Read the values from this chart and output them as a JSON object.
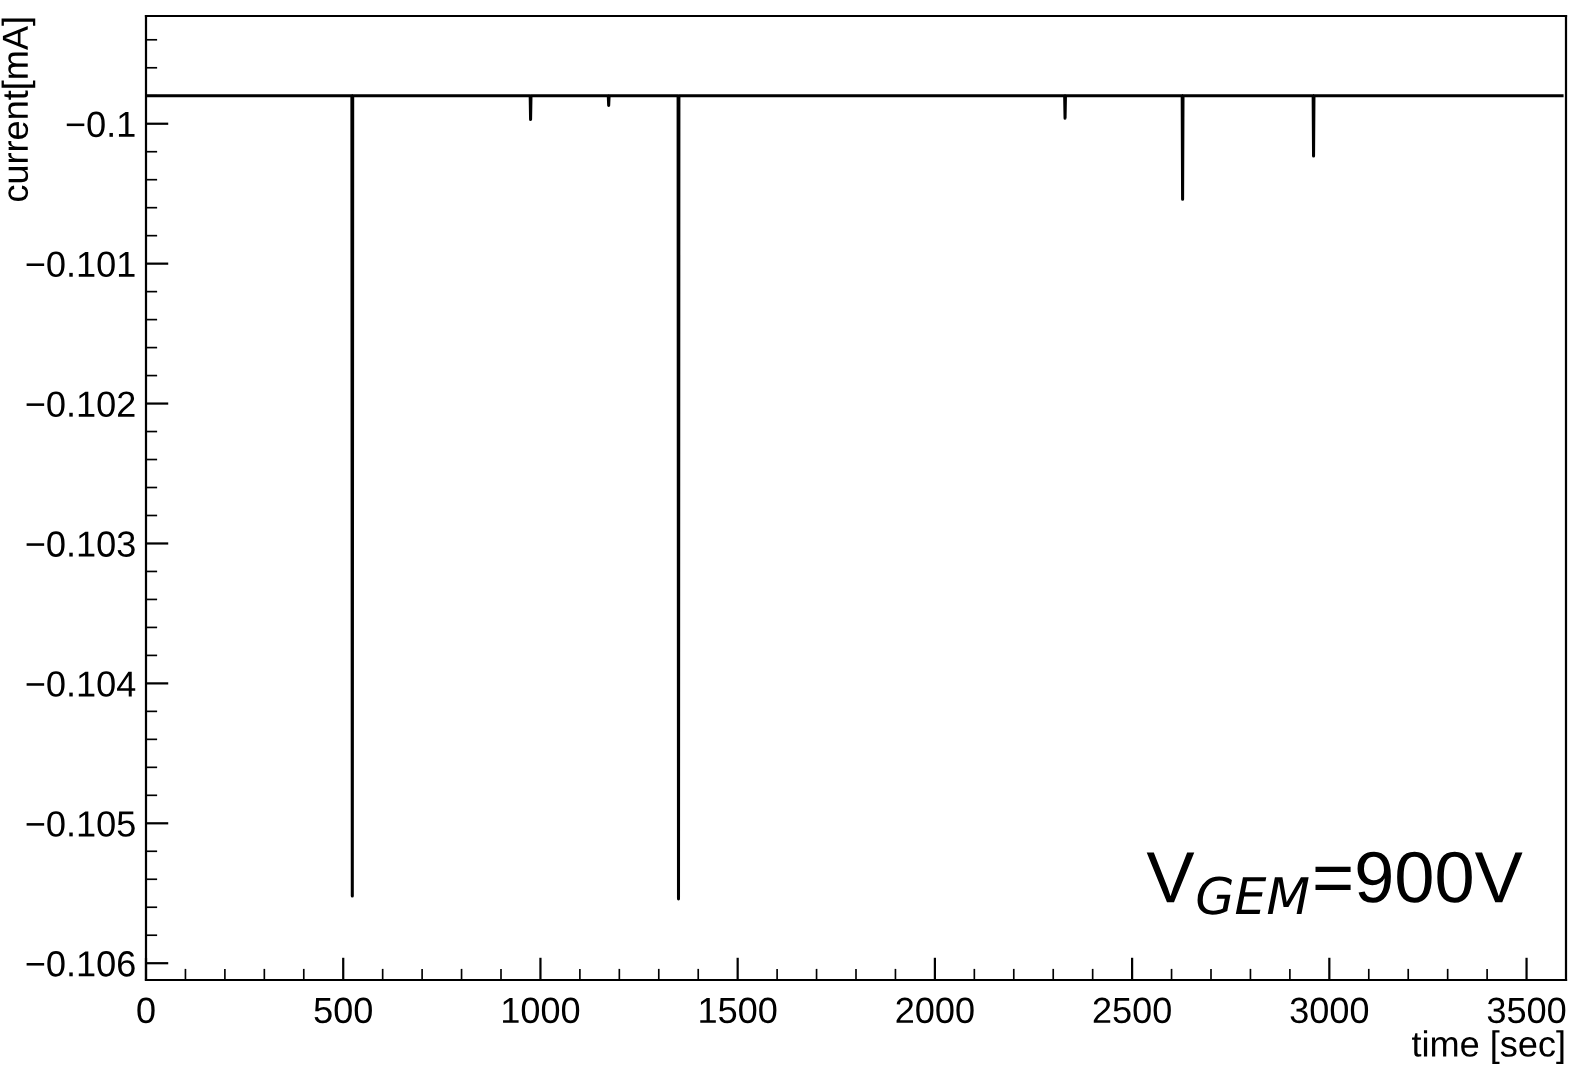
{
  "chart_data": {
    "type": "line",
    "xlabel": "time [sec]",
    "ylabel": "current[mA]",
    "annotations": [
      "V$_{GEM}$=900V"
    ],
    "series": [
      {
        "color": "#000000",
        "x": [
          0,
          522,
          523,
          524,
          974,
          975,
          976,
          1172,
          1173,
          1174,
          1349,
          1350,
          1351,
          2329,
          2330,
          2331,
          2627,
          2628,
          2629,
          2959,
          2960,
          2961,
          3590
        ],
        "values": [
          -0.0998,
          -0.0998,
          -0.10552,
          -0.0998,
          -0.0998,
          -0.09997,
          -0.0998,
          -0.0998,
          -0.09987,
          -0.0998,
          -0.0998,
          -0.10554,
          -0.0998,
          -0.0998,
          -0.09996,
          -0.0998,
          -0.0998,
          -0.10054,
          -0.0998,
          -0.0998,
          -0.10023,
          -0.0998,
          -0.0998
        ]
      }
    ],
    "xlim": [
      0,
      3600
    ],
    "ylim": [
      -0.10612,
      -0.09923
    ],
    "xticks": [
      0,
      500,
      1000,
      1500,
      2000,
      2500,
      3000,
      3500,
      {
        "value": 100,
        "label": null
      },
      {
        "value": 200,
        "label": null
      },
      {
        "value": 300,
        "label": null
      },
      {
        "value": 400,
        "label": null
      },
      {
        "value": 600,
        "label": null
      },
      {
        "value": 700,
        "label": null
      },
      {
        "value": 800,
        "label": null
      },
      {
        "value": 900,
        "label": null
      },
      {
        "value": 1100,
        "label": null
      },
      {
        "value": 1200,
        "label": null
      },
      {
        "value": 1300,
        "label": null
      },
      {
        "value": 1400,
        "label": null
      },
      {
        "value": 1600,
        "label": null
      },
      {
        "value": 1700,
        "label": null
      },
      {
        "value": 1800,
        "label": null
      },
      {
        "value": 1900,
        "label": null
      },
      {
        "value": 2100,
        "label": null
      },
      {
        "value": 2200,
        "label": null
      },
      {
        "value": 2300,
        "label": null
      },
      {
        "value": 2400,
        "label": null
      },
      {
        "value": 2600,
        "label": null
      },
      {
        "value": 2700,
        "label": null
      },
      {
        "value": 2800,
        "label": null
      },
      {
        "value": 2900,
        "label": null
      },
      {
        "value": 3100,
        "label": null
      },
      {
        "value": 3200,
        "label": null
      },
      {
        "value": 3300,
        "label": null
      },
      {
        "value": 3400,
        "label": null
      },
      {
        "value": 3600,
        "label": null
      }
    ],
    "yticks": [
      {
        "value": -0.1,
        "label": "−0.1"
      },
      {
        "value": -0.101,
        "label": "−0.101"
      },
      {
        "value": -0.102,
        "label": "−0.102"
      },
      {
        "value": -0.103,
        "label": "−0.103"
      },
      {
        "value": -0.104,
        "label": "−0.104"
      },
      {
        "value": -0.105,
        "label": "−0.105"
      },
      {
        "value": -0.106,
        "label": "−0.106"
      },
      {
        "value": -0.0994,
        "label": null
      },
      {
        "value": -0.0996,
        "label": null
      },
      {
        "value": -0.0998,
        "label": null
      },
      {
        "value": -0.1002,
        "label": null
      },
      {
        "value": -0.1004,
        "label": null
      },
      {
        "value": -0.1006,
        "label": null
      },
      {
        "value": -0.1008,
        "label": null
      },
      {
        "value": -0.1012,
        "label": null
      },
      {
        "value": -0.1014,
        "label": null
      },
      {
        "value": -0.1016,
        "label": null
      },
      {
        "value": -0.1018,
        "label": null
      },
      {
        "value": -0.1022,
        "label": null
      },
      {
        "value": -0.1024,
        "label": null
      },
      {
        "value": -0.1026,
        "label": null
      },
      {
        "value": -0.1028,
        "label": null
      },
      {
        "value": -0.1032,
        "label": null
      },
      {
        "value": -0.1034,
        "label": null
      },
      {
        "value": -0.1036,
        "label": null
      },
      {
        "value": -0.1038,
        "label": null
      },
      {
        "value": -0.1042,
        "label": null
      },
      {
        "value": -0.1044,
        "label": null
      },
      {
        "value": -0.1046,
        "label": null
      },
      {
        "value": -0.1048,
        "label": null
      },
      {
        "value": -0.1052,
        "label": null
      },
      {
        "value": -0.1054,
        "label": null
      },
      {
        "value": -0.1056,
        "label": null
      },
      {
        "value": -0.1058,
        "label": null
      }
    ],
    "grid": false,
    "legend": false,
    "marker": "none",
    "line_style": "solid"
  }
}
